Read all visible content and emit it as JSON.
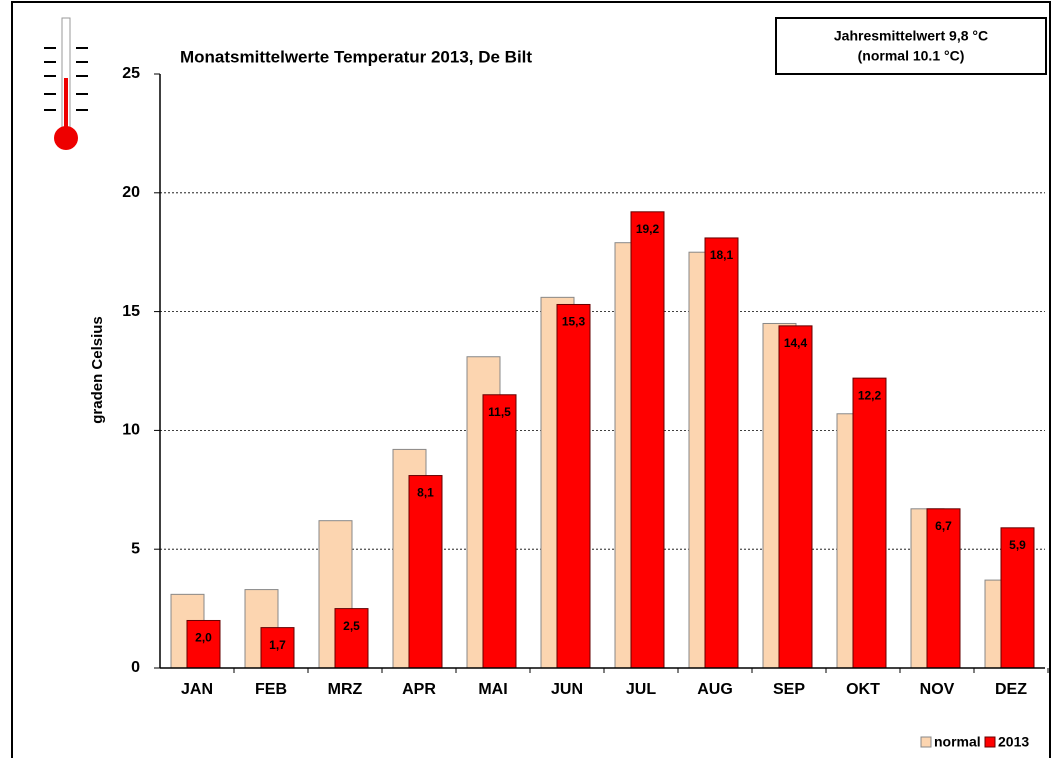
{
  "chart_data": {
    "type": "bar",
    "title": "Monatsmittelwerte Temperatur 2013, De Bilt",
    "annotation": [
      "Jahresmittelwert  9,8 °C",
      "(normal 10.1 °C)"
    ],
    "y_label": "graden Celsius",
    "categories": [
      "JAN",
      "FEB",
      "MRZ",
      "APR",
      "MAI",
      "JUN",
      "JUL",
      "AUG",
      "SEP",
      "OKT",
      "NOV",
      "DEZ"
    ],
    "series": [
      {
        "name": "normal",
        "color": "#fcd5b0",
        "values": [
          3.1,
          3.3,
          6.2,
          9.2,
          13.1,
          15.6,
          17.9,
          17.5,
          14.5,
          10.7,
          6.7,
          3.7
        ]
      },
      {
        "name": "2013",
        "color": "#ff0000",
        "values": [
          2.0,
          1.7,
          2.5,
          8.1,
          11.5,
          15.3,
          19.2,
          18.1,
          14.4,
          12.2,
          6.7,
          5.9
        ],
        "value_labels": [
          "2,0",
          "1,7",
          "2,5",
          "8,1",
          "11,5",
          "15,3",
          "19,2",
          "18,1",
          "14,4",
          "12,2",
          "6,7",
          "5,9"
        ]
      }
    ],
    "ylim": [
      0,
      25
    ],
    "yticks": [
      0,
      5,
      10,
      15,
      20,
      25
    ],
    "grid": true,
    "legend": "bottom-right"
  }
}
